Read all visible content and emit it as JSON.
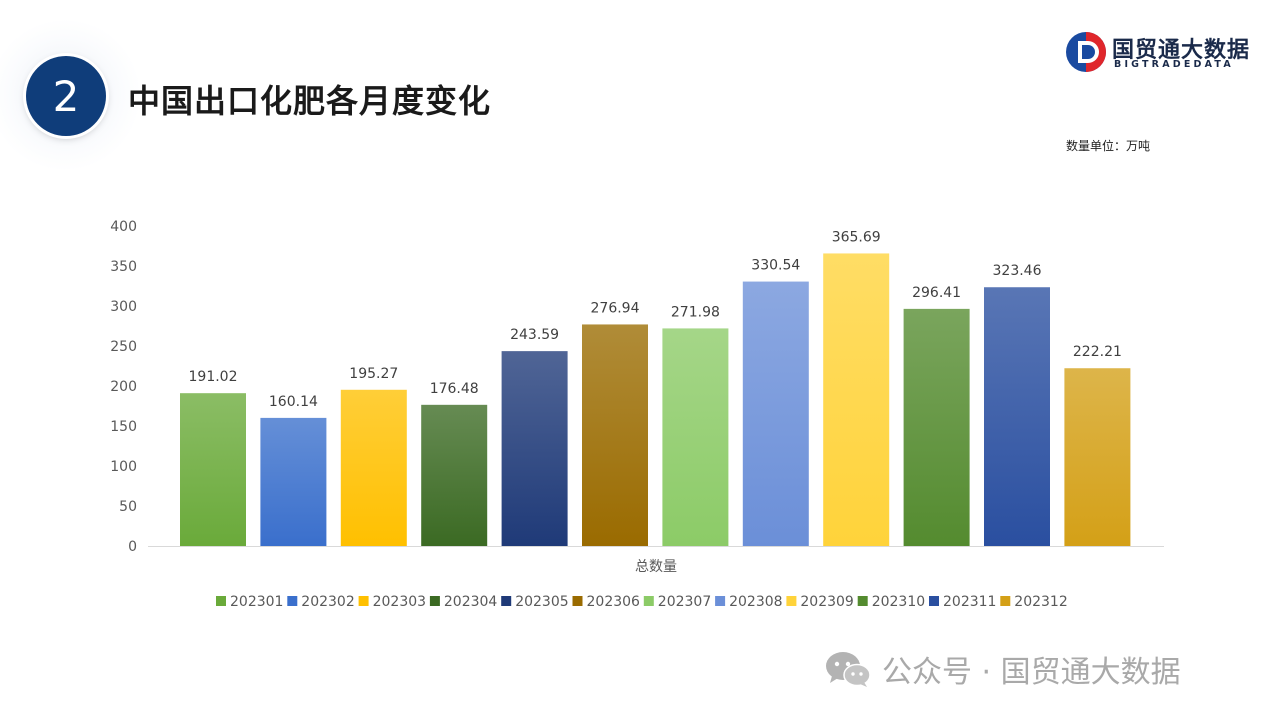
{
  "slide": {
    "number": "2",
    "title": "中国出口化肥各月度变化",
    "unit_label": "数量单位：万吨"
  },
  "logo": {
    "name": "国贸通大数据",
    "sub": "BIGTRADEDATA"
  },
  "watermark": {
    "text": "公众号 · 国贸通大数据"
  },
  "chart_data": {
    "type": "bar",
    "categories": [
      "总数量"
    ],
    "series": [
      {
        "name": "202301",
        "values": [
          191.02
        ],
        "color": "#6aaa3a"
      },
      {
        "name": "202302",
        "values": [
          160.14
        ],
        "color": "#3a6fcc"
      },
      {
        "name": "202303",
        "values": [
          195.27
        ],
        "color": "#ffc000"
      },
      {
        "name": "202304",
        "values": [
          176.48
        ],
        "color": "#3b6a23"
      },
      {
        "name": "202305",
        "values": [
          243.59
        ],
        "color": "#1f3a78"
      },
      {
        "name": "202306",
        "values": [
          276.94
        ],
        "color": "#9a6b00"
      },
      {
        "name": "202307",
        "values": [
          271.98
        ],
        "color": "#8ccb67"
      },
      {
        "name": "202308",
        "values": [
          330.54
        ],
        "color": "#6b8fd8"
      },
      {
        "name": "202309",
        "values": [
          365.69
        ],
        "color": "#ffd33a"
      },
      {
        "name": "202310",
        "values": [
          296.41
        ],
        "color": "#548b2f"
      },
      {
        "name": "202311",
        "values": [
          323.46
        ],
        "color": "#2a4fa0"
      },
      {
        "name": "202312",
        "values": [
          222.21
        ],
        "color": "#d4a017"
      }
    ],
    "yticks": [
      "0",
      "50",
      "100",
      "150",
      "200",
      "250",
      "300",
      "350",
      "400"
    ],
    "ylim": [
      0,
      400
    ],
    "xlabel": "总数量",
    "legend_position": "bottom",
    "grid": false
  }
}
